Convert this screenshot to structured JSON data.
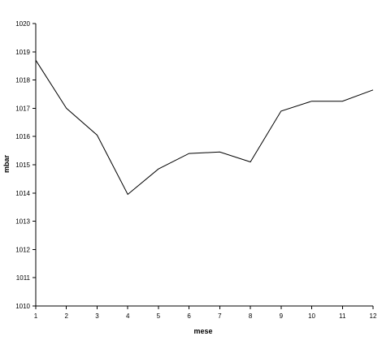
{
  "chart_data": {
    "type": "line",
    "title": "",
    "xlabel": "mese",
    "ylabel": "mbar",
    "x": [
      1,
      2,
      3,
      4,
      5,
      6,
      7,
      8,
      9,
      10,
      11,
      12
    ],
    "series": [
      {
        "values": [
          1018.7,
          1017.0,
          1016.05,
          1013.95,
          1014.85,
          1015.4,
          1015.45,
          1015.1,
          1016.9,
          1017.25,
          1017.25,
          1017.65
        ],
        "color": "#000000"
      }
    ],
    "xlim": [
      1,
      12
    ],
    "ylim": [
      1010,
      1020
    ],
    "yticks": [
      1010,
      1011,
      1012,
      1013,
      1014,
      1015,
      1016,
      1017,
      1018,
      1019,
      1020
    ],
    "xticks": [
      1,
      2,
      3,
      4,
      5,
      6,
      7,
      8,
      9,
      10,
      11,
      12
    ],
    "grid": false,
    "legend": "none"
  }
}
